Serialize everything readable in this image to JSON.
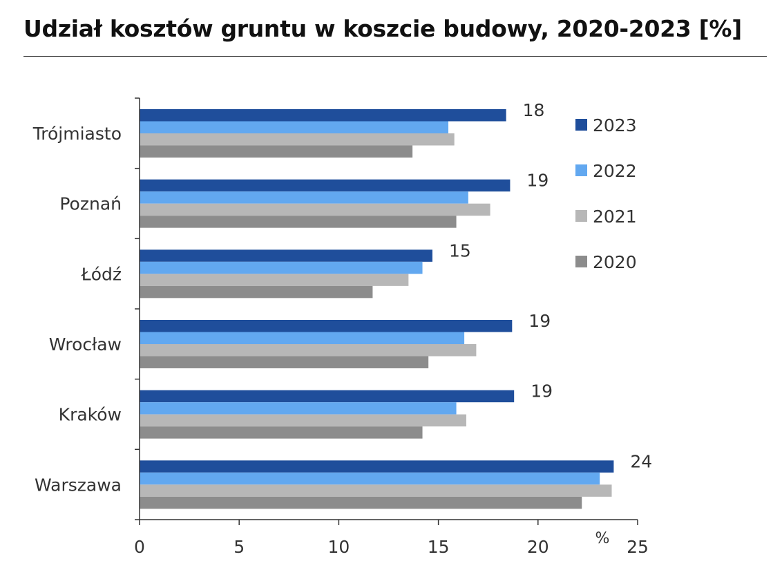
{
  "title": "Udział kosztów gruntu w koszcie budowy, 2020-2023 [%]",
  "chart_data": {
    "type": "bar",
    "orientation": "horizontal",
    "title": "Udział kosztów gruntu w koszcie budowy, 2020-2023 [%]",
    "categories": [
      "Trójmiasto",
      "Poznań",
      "Łódź",
      "Wrocław",
      "Kraków",
      "Warszawa"
    ],
    "series": [
      {
        "name": "2023",
        "color": "#1f4e9b",
        "values": [
          18.4,
          18.6,
          14.7,
          18.7,
          18.8,
          23.8
        ]
      },
      {
        "name": "2022",
        "color": "#62a8f0",
        "values": [
          15.5,
          16.5,
          14.2,
          16.3,
          15.9,
          23.1
        ]
      },
      {
        "name": "2021",
        "color": "#b7b7b7",
        "values": [
          15.8,
          17.6,
          13.5,
          16.9,
          16.4,
          23.7
        ]
      },
      {
        "name": "2020",
        "color": "#8c8c8c",
        "values": [
          13.7,
          15.9,
          11.7,
          14.5,
          14.2,
          22.2
        ]
      }
    ],
    "data_labels": [
      "18",
      "19",
      "15",
      "19",
      "19",
      "24"
    ],
    "xlim": [
      0,
      25
    ],
    "xticks": [
      "0",
      "5",
      "10",
      "15",
      "20",
      "25"
    ],
    "xunit": "%",
    "legend": {
      "placement": "top-right",
      "entries": [
        "2023",
        "2022",
        "2021",
        "2020"
      ]
    },
    "grid": false
  }
}
